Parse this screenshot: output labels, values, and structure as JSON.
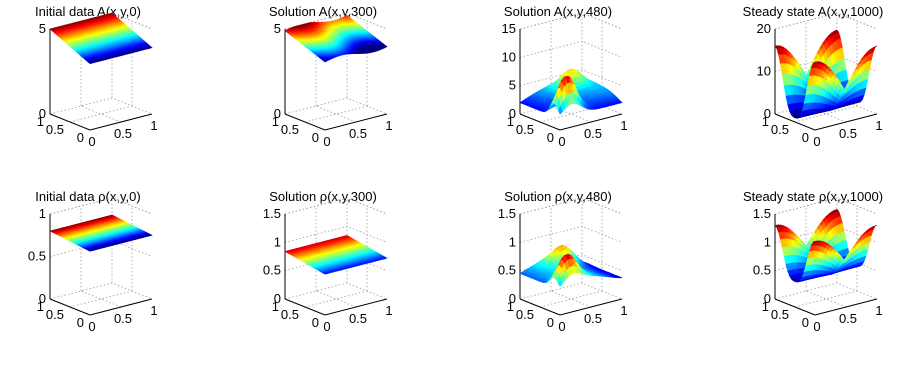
{
  "chart_data": [
    {
      "type": "surface",
      "title": "Initial data A(x,y,0)",
      "ylabel_ticks": [
        "0",
        "5"
      ],
      "zlim": [
        0,
        5
      ],
      "xy_ticks": [
        "0",
        "0.5",
        "1"
      ],
      "description_values": {
        "z_range": [
          3.9,
          5.0
        ]
      }
    },
    {
      "type": "surface",
      "title": "Solution A(x,y,300)",
      "ylabel_ticks": [
        "0",
        "5"
      ],
      "zlim": [
        0,
        5
      ],
      "xy_ticks": [
        "0",
        "0.5",
        "1"
      ],
      "description_values": {
        "z_range": [
          4.0,
          5.0
        ]
      }
    },
    {
      "type": "surface",
      "title": "Solution A(x,y,480)",
      "ylabel_ticks": [
        "0",
        "5",
        "10",
        "15"
      ],
      "zlim": [
        0,
        15
      ],
      "xy_ticks": [
        "0",
        "0.5",
        "1"
      ],
      "description_values": {
        "z_range": [
          1,
          9
        ]
      }
    },
    {
      "type": "surface",
      "title": "Steady state A(x,y,1000)",
      "ylabel_ticks": [
        "0",
        "10",
        "20"
      ],
      "zlim": [
        0,
        20
      ],
      "xy_ticks": [
        "0",
        "0.5",
        "1"
      ],
      "description_values": {
        "z_range": [
          1,
          16
        ]
      }
    },
    {
      "type": "surface",
      "title": "Initial data ρ(x,y,0)",
      "ylabel_ticks": [
        "0",
        "0.5",
        "1"
      ],
      "zlim": [
        0,
        1
      ],
      "xy_ticks": [
        "0",
        "0.5",
        "1"
      ],
      "description_values": {
        "z_range": [
          0.75,
          0.8
        ]
      }
    },
    {
      "type": "surface",
      "title": "Solution ρ(x,y,300)",
      "ylabel_ticks": [
        "0",
        "0.5",
        "1",
        "1.5"
      ],
      "zlim": [
        0,
        1.5
      ],
      "xy_ticks": [
        "0",
        "0.5",
        "1"
      ],
      "description_values": {
        "z_range": [
          0.7,
          0.85
        ]
      }
    },
    {
      "type": "surface",
      "title": "Solution ρ(x,y,480)",
      "ylabel_ticks": [
        "0",
        "0.5",
        "1",
        "1.5"
      ],
      "zlim": [
        0,
        1.5
      ],
      "xy_ticks": [
        "0",
        "0.5",
        "1"
      ],
      "description_values": {
        "z_range": [
          0.3,
          1.0
        ]
      }
    },
    {
      "type": "surface",
      "title": "Steady state ρ(x,y,1000)",
      "ylabel_ticks": [
        "0",
        "0.5",
        "1",
        "1.5"
      ],
      "zlim": [
        0,
        1.5
      ],
      "xy_ticks": [
        "0",
        "0.5",
        "1"
      ],
      "description_values": {
        "z_range": [
          0.4,
          1.3
        ]
      }
    }
  ]
}
